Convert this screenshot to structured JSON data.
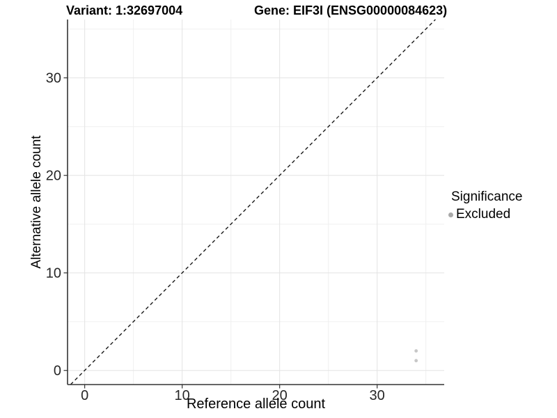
{
  "header": {
    "variant_label": "Variant: 1:32697004",
    "gene_label": "Gene: EIF3I (ENSG00000084623)"
  },
  "chart_data": {
    "type": "scatter",
    "xlabel": "Reference allele count",
    "ylabel": "Alternative allele count",
    "x_ticks": [
      0,
      10,
      20,
      30
    ],
    "y_ticks": [
      0,
      10,
      20,
      30
    ],
    "x_minor_ticks": [
      5,
      15,
      25,
      35
    ],
    "y_minor_ticks": [
      5,
      15,
      25,
      35
    ],
    "xlim": [
      -1.76,
      36.88
    ],
    "ylim": [
      -1.45,
      35.98
    ],
    "grid": true,
    "identity_line": {
      "slope": 1,
      "intercept": 0,
      "style": "dashed"
    },
    "series": [
      {
        "name": "Excluded",
        "marker": "circle",
        "color": "#c7c7c7",
        "points": [
          {
            "x": 34,
            "y": 2
          },
          {
            "x": 34,
            "y": 1
          }
        ]
      }
    ]
  },
  "legend": {
    "title": "Significance",
    "position": "right",
    "items": [
      {
        "label": "Excluded",
        "marker": "circle",
        "color": "#a9a9a9"
      }
    ]
  },
  "colors": {
    "background": "#ffffff",
    "grid_major": "#e3e3e3",
    "grid_minor": "#f0f0f0",
    "axis_line": "#333333",
    "tick_mark": "#333333",
    "tick_label": "#262626",
    "identity_line": "#1a1a1a",
    "point": "#c7c7c7",
    "legend_marker": "#a9a9a9"
  }
}
